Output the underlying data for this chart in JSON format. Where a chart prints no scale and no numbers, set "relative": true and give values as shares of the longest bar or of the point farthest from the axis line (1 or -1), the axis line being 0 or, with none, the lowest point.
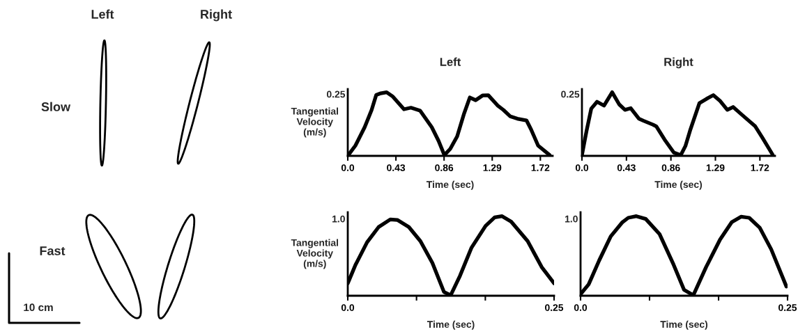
{
  "chart_data": [
    {
      "type": "other",
      "annotations": [
        "Left",
        "Right",
        "Slow",
        "Fast",
        "10 cm"
      ]
    },
    {
      "type": "line",
      "title": "Left",
      "xlabel": "Time (sec)",
      "ylabel": "Tangential\nVelocity\n(m/s)",
      "color": "#000000",
      "relative": true,
      "annotations": [
        "0.25"
      ],
      "x": [
        0,
        0.068,
        0.151,
        0.213,
        0.254,
        0.295,
        0.347,
        0.399,
        0.502,
        0.564,
        0.646,
        0.75,
        0.811,
        0.863,
        0.915,
        0.977,
        1.039,
        1.09,
        1.142,
        1.204,
        1.255,
        1.338,
        1.39,
        1.452,
        1.514,
        1.596,
        1.637,
        1.7,
        1.803
      ],
      "values": [
        0,
        0.161,
        0.451,
        0.722,
        0.957,
        0.984,
        1,
        0.937,
        0.733,
        0.757,
        0.71,
        0.451,
        0.235,
        0.012,
        0.11,
        0.306,
        0.667,
        0.918,
        0.875,
        0.949,
        0.953,
        0.792,
        0.722,
        0.62,
        0.584,
        0.557,
        0.416,
        0.161,
        0.012
      ],
      "xlim": [
        0,
        1.83
      ],
      "xticks": [
        {
          "value": 0,
          "label": "0.0"
        },
        0.43,
        0.86,
        1.29,
        1.72
      ]
    },
    {
      "type": "line",
      "title": "Right",
      "xlabel": "Time (sec)",
      "color": "#000000",
      "relative": true,
      "annotations": [
        "0.25"
      ],
      "x": [
        0,
        0.045,
        0.09,
        0.146,
        0.213,
        0.292,
        0.36,
        0.416,
        0.472,
        0.551,
        0.596,
        0.686,
        0.719,
        0.798,
        0.888,
        0.955,
        1.0,
        1.045,
        1.135,
        1.203,
        1.27,
        1.337,
        1.405,
        1.461,
        1.54,
        1.675,
        1.742,
        1.843
      ],
      "values": [
        0.011,
        0.397,
        0.742,
        0.85,
        0.79,
        1,
        0.809,
        0.723,
        0.749,
        0.584,
        0.551,
        0.491,
        0.464,
        0.258,
        0.052,
        0.011,
        0.154,
        0.397,
        0.828,
        0.895,
        0.955,
        0.861,
        0.723,
        0.768,
        0.655,
        0.464,
        0.292,
        0.019
      ],
      "xlim": [
        0,
        1.866
      ],
      "xticks": [
        {
          "value": 0,
          "label": "0.0"
        },
        0.43,
        0.86,
        1.29,
        1.72
      ]
    },
    {
      "type": "line",
      "xlabel": "Time (sec)",
      "ylabel": "Tangential\nVelocity\n(m/s)",
      "color": "#000000",
      "relative": true,
      "annotations": [
        "1.0"
      ],
      "x": [
        0,
        0.0093,
        0.0234,
        0.0374,
        0.0515,
        0.06,
        0.074,
        0.088,
        0.1025,
        0.1166,
        0.1247,
        0.136,
        0.15,
        0.167,
        0.178,
        0.187,
        0.198,
        0.218,
        0.235,
        0.25
      ],
      "values": [
        0.156,
        0.387,
        0.673,
        0.864,
        0.959,
        0.953,
        0.864,
        0.687,
        0.414,
        0.047,
        0.006,
        0.251,
        0.605,
        0.878,
        0.986,
        1,
        0.932,
        0.687,
        0.36,
        0.156
      ],
      "xlim": [
        0,
        0.25
      ],
      "xticks": [
        {
          "value": 0,
          "label": "0.0"
        },
        {
          "value": 0.0833,
          "label": null
        },
        {
          "value": 0.1667,
          "label": null
        },
        0.25
      ]
    },
    {
      "type": "line",
      "xlabel": "Time (sec)",
      "color": "#000000",
      "relative": true,
      "annotations": [
        "1.0"
      ],
      "x": [
        0,
        0.0098,
        0.0225,
        0.0365,
        0.0506,
        0.0576,
        0.0674,
        0.0787,
        0.0955,
        0.1124,
        0.125,
        0.1362,
        0.1517,
        0.1685,
        0.1826,
        0.1938,
        0.2037,
        0.2163,
        0.2303,
        0.2486
      ],
      "values": [
        0.02,
        0.143,
        0.444,
        0.747,
        0.925,
        0.98,
        1,
        0.966,
        0.774,
        0.39,
        0.074,
        0.006,
        0.362,
        0.706,
        0.925,
        0.994,
        0.98,
        0.857,
        0.583,
        0.116
      ],
      "xlim": [
        0,
        0.25
      ],
      "xticks": [
        {
          "value": 0,
          "label": "0.0"
        },
        {
          "value": 0.0833,
          "label": null
        },
        {
          "value": 0.1667,
          "label": null
        },
        0.25
      ]
    }
  ]
}
